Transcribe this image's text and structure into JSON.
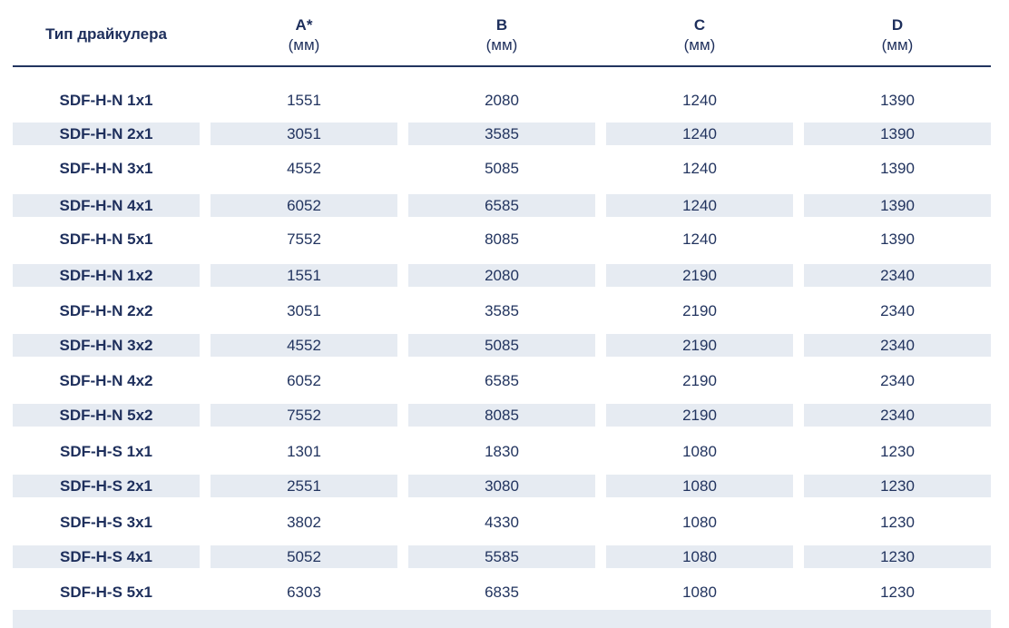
{
  "table": {
    "headers": [
      {
        "letter": "Тип драйкулера",
        "unit": ""
      },
      {
        "letter": "A*",
        "unit": "(мм)"
      },
      {
        "letter": "B",
        "unit": "(мм)"
      },
      {
        "letter": "C",
        "unit": "(мм)"
      },
      {
        "letter": "D",
        "unit": "(мм)"
      }
    ],
    "rows": [
      [
        "SDF-H-N 1x1",
        "1551",
        "2080",
        "1240",
        "1390"
      ],
      [
        "SDF-H-N 2x1",
        "3051",
        "3585",
        "1240",
        "1390"
      ],
      [
        "SDF-H-N 3x1",
        "4552",
        "5085",
        "1240",
        "1390"
      ],
      [
        "SDF-H-N 4x1",
        "6052",
        "6585",
        "1240",
        "1390"
      ],
      [
        "SDF-H-N 5x1",
        "7552",
        "8085",
        "1240",
        "1390"
      ],
      [
        "SDF-H-N 1x2",
        "1551",
        "2080",
        "2190",
        "2340"
      ],
      [
        "SDF-H-N 2x2",
        "3051",
        "3585",
        "2190",
        "2340"
      ],
      [
        "SDF-H-N 3x2",
        "4552",
        "5085",
        "2190",
        "2340"
      ],
      [
        "SDF-H-N 4x2",
        "6052",
        "6585",
        "2190",
        "2340"
      ],
      [
        "SDF-H-N 5x2",
        "7552",
        "8085",
        "2190",
        "2340"
      ],
      [
        "SDF-H-S 1x1",
        "1301",
        "1830",
        "1080",
        "1230"
      ],
      [
        "SDF-H-S 2x1",
        "2551",
        "3080",
        "1080",
        "1230"
      ],
      [
        "SDF-H-S 3x1",
        "3802",
        "4330",
        "1080",
        "1230"
      ],
      [
        "SDF-H-S 4x1",
        "5052",
        "5585",
        "1080",
        "1230"
      ],
      [
        "SDF-H-S 5x1",
        "6303",
        "6835",
        "1080",
        "1230"
      ]
    ]
  },
  "colors": {
    "text": "#1e2f5c",
    "shade": "#e6ebf2",
    "rule": "#22345f"
  }
}
